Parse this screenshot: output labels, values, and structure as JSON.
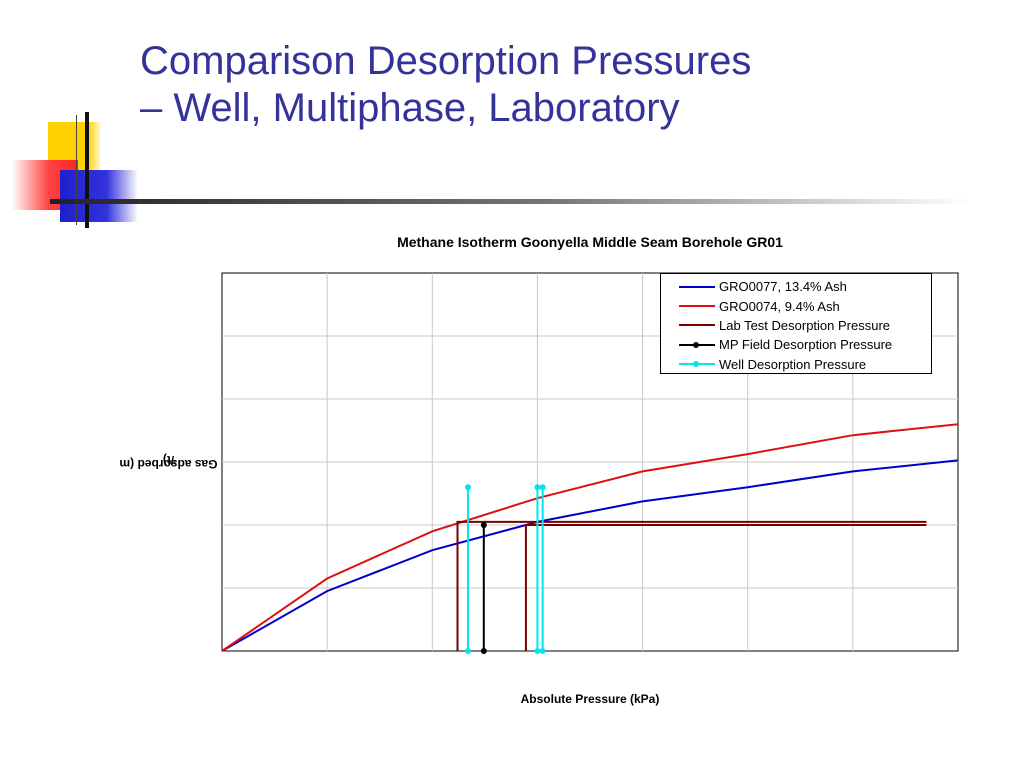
{
  "slide": {
    "title_line1": "Comparison Desorption Pressures",
    "title_line2": "– Well, Multiphase, Laboratory",
    "title_color": "#333399"
  },
  "chart_data": {
    "type": "line",
    "title": "Methane Isotherm Goonyella Middle Seam Borehole GR01",
    "xlabel": "Absolute Pressure (kPa)",
    "ylabel_prefix": "Gas adsorbed (m",
    "ylabel_sup": "3",
    "ylabel_suffix": "/t)",
    "xlim": [
      0,
      7000
    ],
    "ylim": [
      0,
      12
    ],
    "grid": true,
    "legend_position": "top-right",
    "series": [
      {
        "name": "GRO0077, 13.4% Ash",
        "kind": "line",
        "color": "#0000cc",
        "x": [
          0,
          1000,
          2000,
          3000,
          4000,
          5000,
          6000,
          7000
        ],
        "y": [
          0,
          1.9,
          3.2,
          4.1,
          4.75,
          5.2,
          5.7,
          6.05
        ]
      },
      {
        "name": "GRO0074, 9.4% Ash",
        "kind": "line",
        "color": "#dd1111",
        "x": [
          0,
          1000,
          2000,
          3000,
          4000,
          5000,
          6000,
          7000
        ],
        "y": [
          0,
          2.3,
          3.8,
          4.85,
          5.7,
          6.25,
          6.85,
          7.2
        ]
      },
      {
        "name": "Lab Test Desorption Pressure",
        "kind": "desorption",
        "color": "#7a0000",
        "lines": [
          {
            "x": 2240,
            "y": 4.1,
            "xend": 6700
          },
          {
            "x": 2890,
            "y": 4.0,
            "xend": 6700
          }
        ]
      },
      {
        "name": "MP Field Desorption Pressure",
        "kind": "vmarker",
        "color": "#000000",
        "lines": [
          {
            "x": 2490,
            "y": 4.0
          }
        ]
      },
      {
        "name": "Well Desorption Pressure",
        "kind": "vmarker",
        "color": "#00e5ee",
        "lines": [
          {
            "x": 2340,
            "y": 5.2
          },
          {
            "x": 3000,
            "y": 5.2
          },
          {
            "x": 3050,
            "y": 5.2
          }
        ]
      }
    ]
  }
}
